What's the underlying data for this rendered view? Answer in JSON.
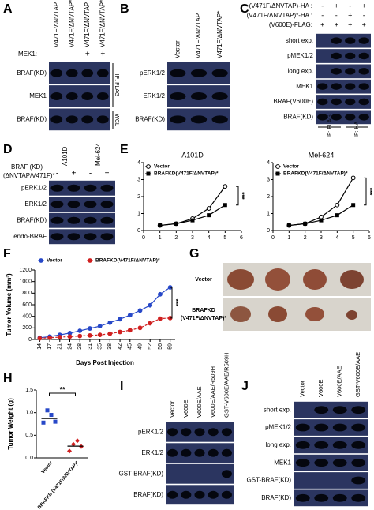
{
  "panels": {
    "A": {
      "letter": "A",
      "columns": [
        "V471F/ΔNVTAP",
        "V471F/ΔNVTAP*",
        "V471F/ΔNVTAP",
        "V471F/ΔNVTAP*"
      ],
      "treatment_label": "MEK1:",
      "treatment": [
        "-",
        "-",
        "+",
        "+"
      ],
      "rows": [
        "BRAF(KD)",
        "MEK1",
        "BRAF(KD)"
      ],
      "brackets": [
        "IP: FLAG",
        "WCL"
      ]
    },
    "B": {
      "letter": "B",
      "columns": [
        "Vector",
        "V471F/ΔNVTAP",
        "V471F/ΔNVTAP*"
      ],
      "rows": [
        "pERK1/2",
        "ERK1/2",
        "BRAF(KD)"
      ]
    },
    "C": {
      "letter": "C",
      "treatment_rows": [
        {
          "label": "(V471F/ΔNVTAP)-HA :",
          "signs": [
            "-",
            "+",
            "-",
            "+"
          ]
        },
        {
          "label": "(V471F/ΔNVTAP)*-HA :",
          "signs": [
            "-",
            "-",
            "+",
            "-"
          ]
        },
        {
          "label": "(V600E)-FLAG:",
          "signs": [
            "+",
            "+",
            "+",
            "+"
          ]
        }
      ],
      "rows": [
        "short exp.",
        "pMEK1/2",
        "long exp.",
        "MEK1",
        "BRAF(V600E)",
        "BRAF(KD)"
      ],
      "row_colors": [
        "#c00000",
        "#000000",
        "#c00000",
        "#000000",
        "#000000",
        "#000000"
      ],
      "brackets": [
        "IP: FLAG",
        "IP: HA"
      ]
    },
    "D": {
      "letter": "D",
      "groups": [
        "A101D",
        "Mel-624"
      ],
      "treatment_label": [
        "BRAF (KD)",
        "(ΔNVTAP/V471F)*"
      ],
      "treatment": [
        "-",
        "+",
        "-",
        "+"
      ],
      "rows": [
        "pERK1/2",
        "ERK1/2",
        "BRAF(KD)",
        "endo-BRAF"
      ]
    },
    "E": {
      "letter": "E"
    },
    "F": {
      "letter": "F"
    },
    "G": {
      "letter": "G",
      "rows": [
        [
          "Vector"
        ],
        [
          "BRAFKD",
          "(V471F/ΔNVTAP)*"
        ]
      ]
    },
    "H": {
      "letter": "H"
    },
    "I": {
      "letter": "I",
      "columns": [
        "Vector",
        "V600E",
        "V600E/AAE",
        "V600E/AAE/R509H",
        "GST-V600E/AAE/R509H"
      ],
      "rows": [
        "pERK1/2",
        "ERK1/2",
        "GST-BRAF(KD)",
        "BRAF(KD)"
      ]
    },
    "J": {
      "letter": "J",
      "columns": [
        "Vector",
        "V600E",
        "V600E/AAE",
        "GST-V600E/AAE"
      ],
      "rows": [
        "short exp.",
        "pMEK1/2",
        "long exp.",
        "MEK1",
        "GST-BRAF(KD)",
        "BRAF(KD)"
      ],
      "row_colors": [
        "#c00000",
        "#000000",
        "#c00000",
        "#000000",
        "#000000",
        "#000000"
      ]
    }
  },
  "chart_data": [
    {
      "type": "line",
      "title": "A101D",
      "x": [
        1,
        2,
        3,
        4,
        5
      ],
      "xlim": [
        0,
        6
      ],
      "xticks": [
        0,
        1,
        2,
        3,
        4,
        5,
        6
      ],
      "ylim": [
        0,
        4
      ],
      "yticks": [
        0,
        1,
        2,
        3,
        4
      ],
      "series": [
        {
          "name": "Vector",
          "color": "#000000",
          "marker": "circle-open",
          "values": [
            0.3,
            0.4,
            0.7,
            1.3,
            2.6
          ]
        },
        {
          "name": "BRAFKD(V471F/ΔNVTAP)*",
          "color": "#000000",
          "marker": "square",
          "values": [
            0.3,
            0.4,
            0.6,
            0.9,
            1.5
          ]
        }
      ],
      "annotation": "***"
    },
    {
      "type": "line",
      "title": "Mel-624",
      "x": [
        1,
        2,
        3,
        4,
        5
      ],
      "xlim": [
        0,
        6
      ],
      "xticks": [
        0,
        1,
        2,
        3,
        4,
        5,
        6
      ],
      "ylim": [
        0,
        4
      ],
      "yticks": [
        0,
        1,
        2,
        3,
        4
      ],
      "series": [
        {
          "name": "Vector",
          "color": "#000000",
          "marker": "circle-open",
          "values": [
            0.3,
            0.4,
            0.8,
            1.5,
            3.1
          ]
        },
        {
          "name": "BRAFKD(V471F/ΔNVTAP)*",
          "color": "#000000",
          "marker": "square",
          "values": [
            0.3,
            0.4,
            0.6,
            0.9,
            1.5
          ]
        }
      ],
      "annotation": "***"
    },
    {
      "type": "line",
      "ylabel": "Tumor Volume (mm³)",
      "xlabel": "Days Post Injection",
      "categories": [
        "14",
        "17",
        "21",
        "24",
        "28",
        "31",
        "35",
        "38",
        "42",
        "45",
        "49",
        "52",
        "56",
        "59"
      ],
      "ylim": [
        0,
        1200
      ],
      "yticks": [
        0,
        200,
        400,
        600,
        800,
        1000,
        1200
      ],
      "series": [
        {
          "name": "Vector",
          "color": "#2748c8",
          "marker": "circle",
          "values": [
            30,
            50,
            80,
            110,
            150,
            190,
            230,
            290,
            350,
            420,
            500,
            590,
            780,
            900
          ]
        },
        {
          "name": "BRAFKD(V471F/ΔNVTAP)*",
          "color": "#d02020",
          "marker": "circle",
          "dashed": true,
          "values": [
            20,
            30,
            40,
            50,
            60,
            70,
            80,
            100,
            130,
            160,
            200,
            280,
            360,
            370
          ]
        }
      ],
      "annotation": "***"
    },
    {
      "type": "dot",
      "ylabel": "Tumor Weight (g)",
      "categories": [
        "Vector",
        "BRAFKD (V471F/ΔNVTAP)*"
      ],
      "ylim": [
        0,
        1.5
      ],
      "yticks": [
        {
          "value": 0,
          "label": "0.0"
        },
        {
          "value": 0.5,
          "label": "0.5"
        },
        {
          "value": 1,
          "label": "1.0"
        },
        {
          "value": 1.5,
          "label": "1.5"
        }
      ],
      "groups": [
        {
          "color": "#2748c8",
          "marker": "square",
          "values": [
            0.78,
            1.05,
            0.95,
            0.8
          ],
          "mean": 0.87
        },
        {
          "color": "#d02020",
          "marker": "diamond",
          "values": [
            0.15,
            0.3,
            0.38,
            0.25
          ],
          "mean": 0.26
        }
      ],
      "annotation": "**"
    }
  ]
}
